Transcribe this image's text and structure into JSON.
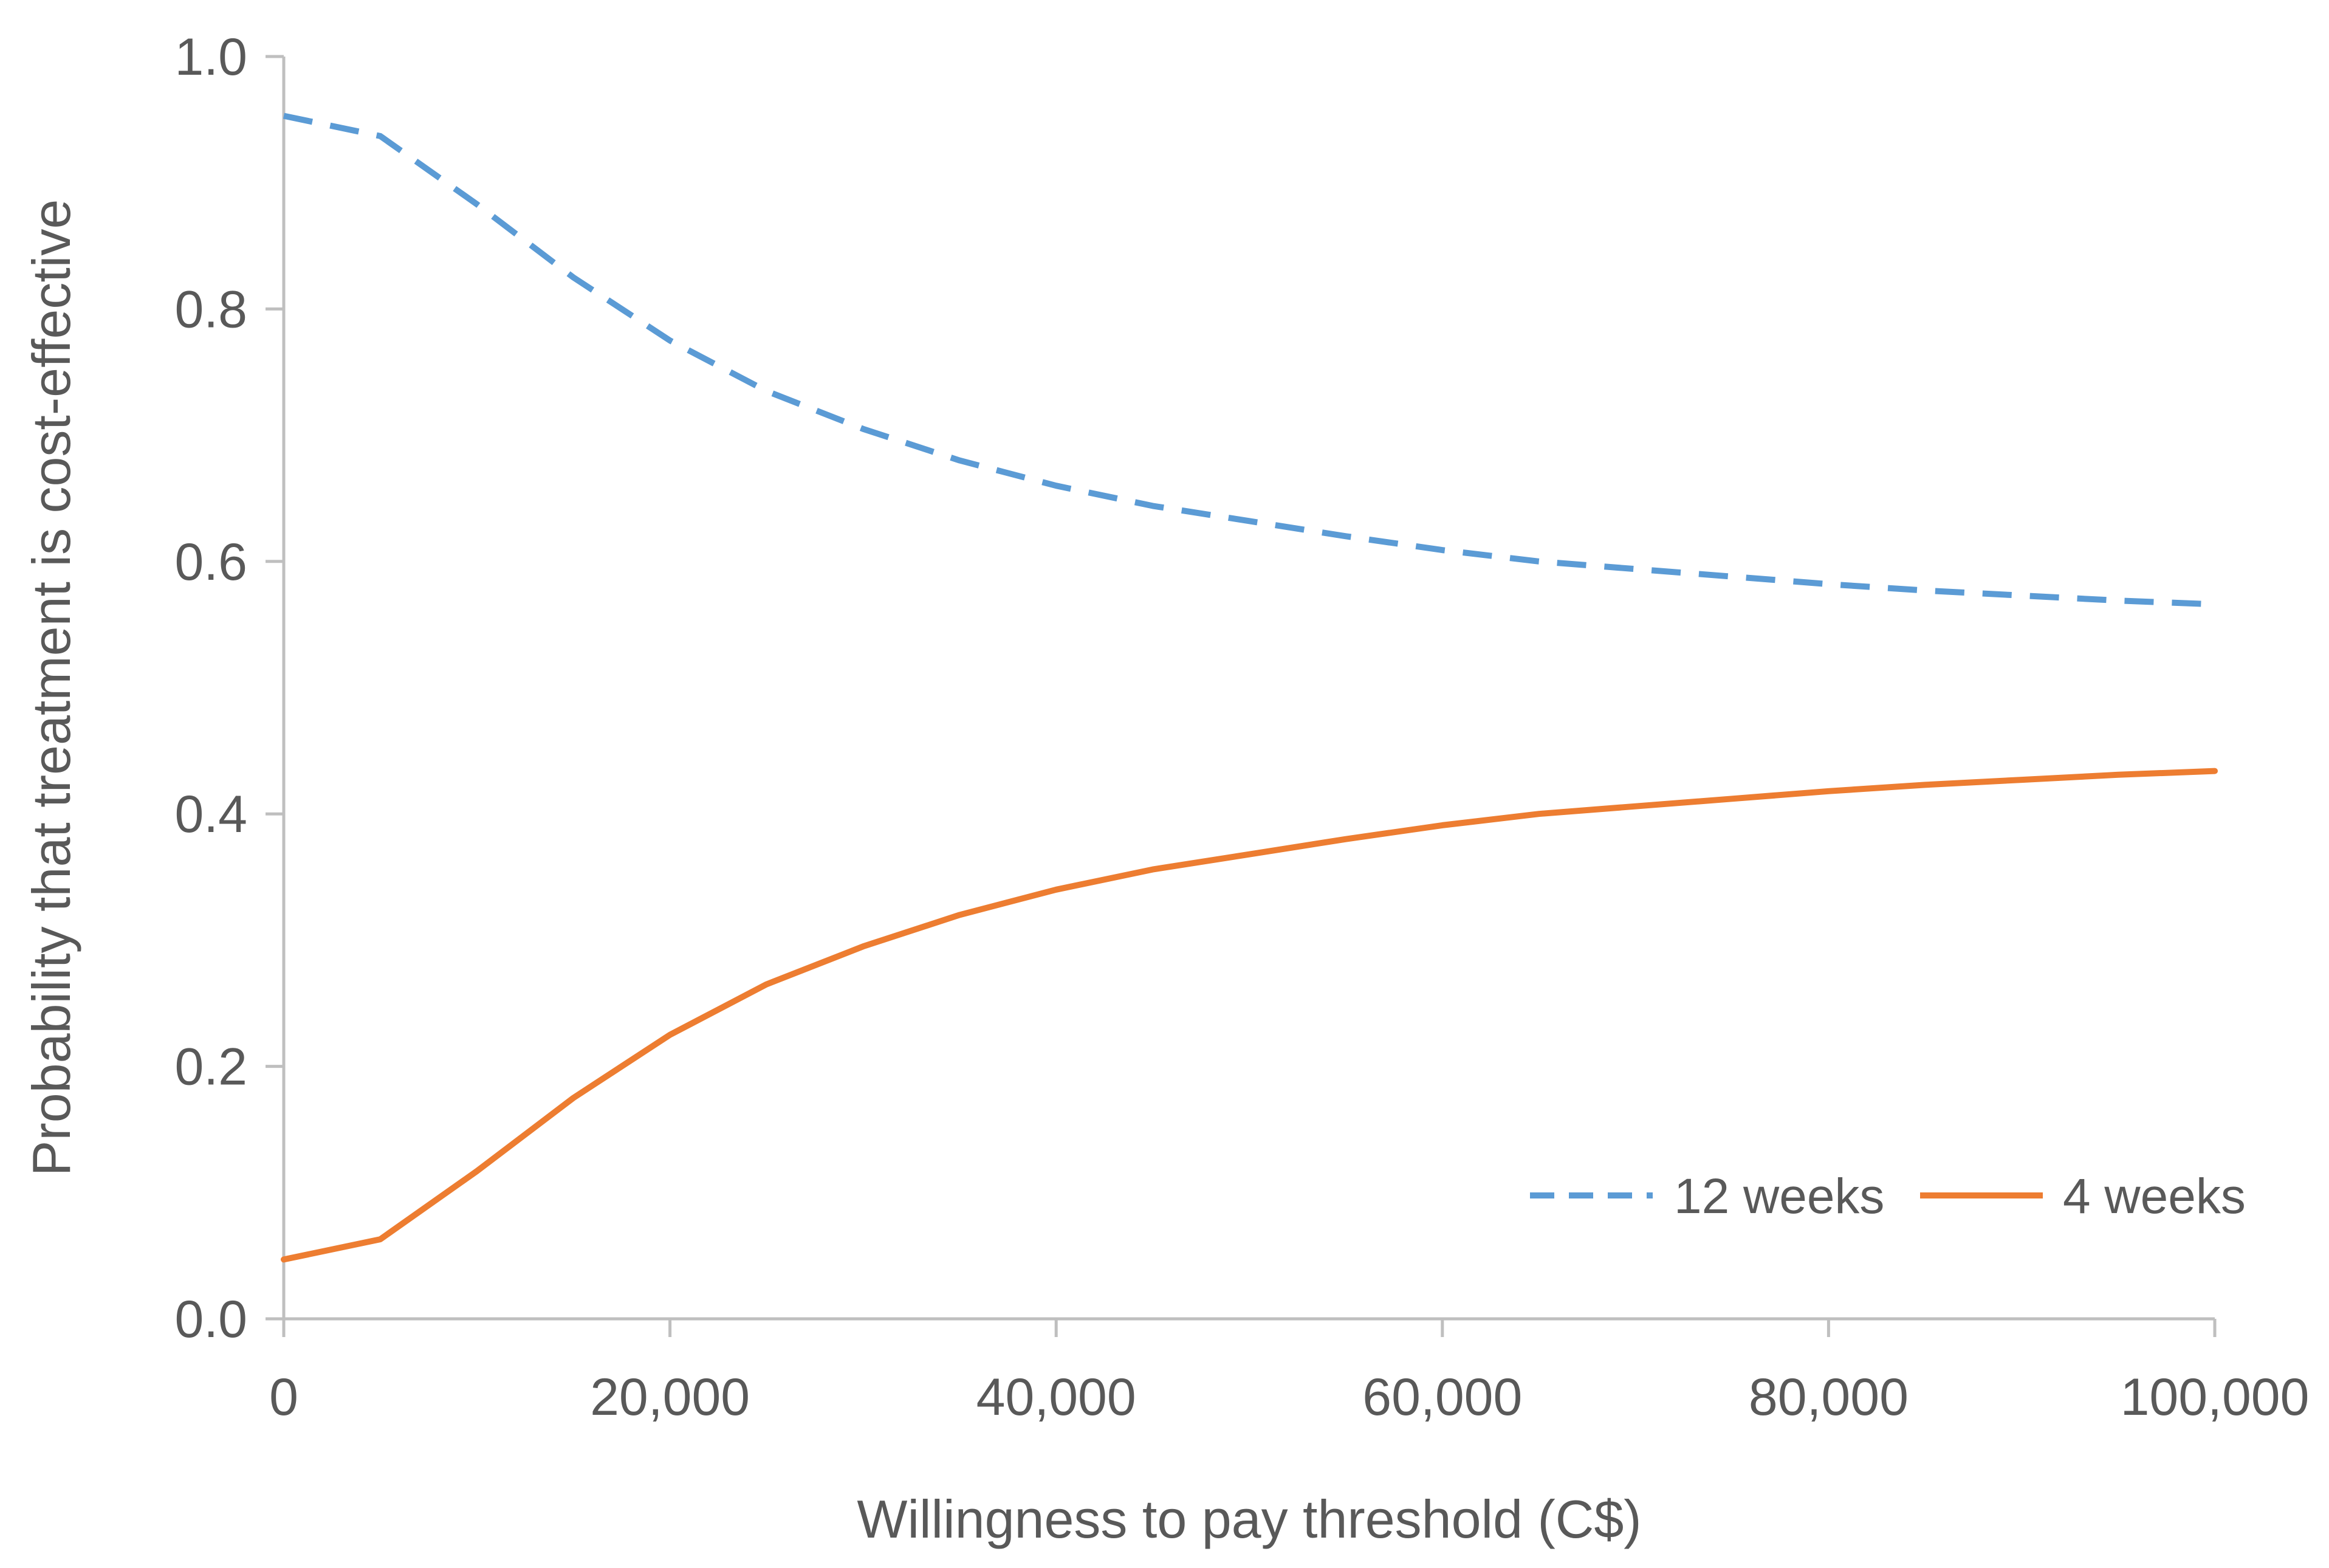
{
  "chart_data": {
    "type": "line",
    "title": "",
    "xlabel": "Willingness to pay threshold (C$)",
    "ylabel": "Probability that treatment is cost-effective",
    "xlim": [
      0,
      100000
    ],
    "ylim": [
      0,
      1.0
    ],
    "x_ticks": [
      0,
      20000,
      40000,
      60000,
      80000,
      100000
    ],
    "x_tick_labels": [
      "0",
      "20,000",
      "40,000",
      "60,000",
      "80,000",
      "100,000"
    ],
    "y_ticks": [
      0,
      0.2,
      0.4,
      0.6,
      0.8,
      1.0
    ],
    "y_tick_labels": [
      "0.0",
      "0.2",
      "0.4",
      "0.6",
      "0.8",
      "1.0"
    ],
    "grid": false,
    "legend_position": "bottom-right",
    "x": [
      0,
      5000,
      10000,
      15000,
      20000,
      25000,
      30000,
      35000,
      40000,
      45000,
      50000,
      55000,
      60000,
      65000,
      70000,
      75000,
      80000,
      85000,
      90000,
      95000,
      100000
    ],
    "series": [
      {
        "name": "12 weeks",
        "color": "#5B9BD5",
        "style": "dashed",
        "values": [
          0.953,
          0.937,
          0.883,
          0.825,
          0.775,
          0.735,
          0.705,
          0.68,
          0.66,
          0.644,
          0.632,
          0.62,
          0.609,
          0.6,
          0.594,
          0.588,
          0.582,
          0.577,
          0.573,
          0.569,
          0.566
        ]
      },
      {
        "name": "4 weeks",
        "color": "#ED7D31",
        "style": "solid",
        "values": [
          0.047,
          0.063,
          0.117,
          0.175,
          0.225,
          0.265,
          0.295,
          0.32,
          0.34,
          0.356,
          0.368,
          0.38,
          0.391,
          0.4,
          0.406,
          0.412,
          0.418,
          0.423,
          0.427,
          0.431,
          0.434
        ]
      }
    ]
  }
}
